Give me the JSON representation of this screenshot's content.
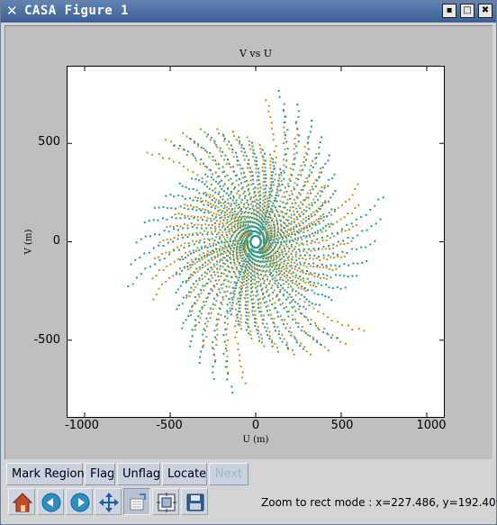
{
  "window": {
    "title": "CASA Figure 1",
    "title_icon": "x-icon",
    "buttons": {
      "minimize": "▪",
      "maximize": "□",
      "close": "✖"
    }
  },
  "chart_data": {
    "type": "scatter",
    "title": "V  vs U",
    "xlabel": "U (m)",
    "ylabel": "V (m)",
    "xlim": [
      -1100,
      1100
    ],
    "ylim": [
      -890,
      890
    ],
    "xticks": [
      "-1000",
      "-500",
      "0",
      "500",
      "1000"
    ],
    "xtick_values": [
      -1000,
      -500,
      0,
      500,
      1000
    ],
    "yticks": [
      "500",
      "0",
      "-500"
    ],
    "ytick_values": [
      500,
      0,
      -500
    ],
    "grid": false,
    "series": [
      {
        "color": "#c8901f",
        "arms": [
          {
            "angle": 155,
            "r0": 30,
            "r1": 700,
            "twist": 0.55
          },
          {
            "angle": 275,
            "r0": 30,
            "r1": 820,
            "twist": 0.45
          },
          {
            "angle": 35,
            "r0": 30,
            "r1": 760,
            "twist": 0.5
          }
        ]
      },
      {
        "color": "#1f9aa0",
        "arms": [
          {
            "angle": 205,
            "r0": 30,
            "r1": 820,
            "twist": 0.55
          },
          {
            "angle": 325,
            "r0": 30,
            "r1": 820,
            "twist": 0.5
          },
          {
            "angle": 85,
            "r0": 30,
            "r1": 720,
            "twist": 0.5
          }
        ]
      }
    ]
  },
  "controls": {
    "mark_region": "Mark Region",
    "flag": "Flag",
    "unflag": "Unflag",
    "locate": "Locate",
    "next": "Next"
  },
  "toolbar_icons": [
    "home-icon",
    "back-icon",
    "forward-icon",
    "pan-icon",
    "zoom-rect-icon",
    "configure-subplots-icon",
    "save-icon"
  ],
  "status": "Zoom to rect mode : x=227.486, y=192.409"
}
